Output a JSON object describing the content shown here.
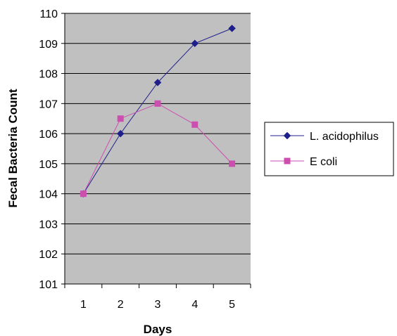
{
  "chart_data": {
    "type": "line",
    "title": "",
    "xlabel": "Days",
    "ylabel": "Fecal Bacteria Count",
    "categories": [
      "1",
      "2",
      "3",
      "4",
      "5"
    ],
    "ylim": [
      101,
      110
    ],
    "yticks": [
      "101",
      "102",
      "103",
      "104",
      "105",
      "106",
      "107",
      "108",
      "109",
      "110"
    ],
    "grid": true,
    "legend_position": "right",
    "plot_background": "#c0c0c0",
    "series": [
      {
        "name": "L. acidophilus",
        "values": [
          104,
          106,
          107.7,
          109,
          109.5
        ],
        "color": "#1f1f8c",
        "marker": "diamond"
      },
      {
        "name": "E coli",
        "values": [
          104,
          106.5,
          107,
          106.3,
          105
        ],
        "color": "#cc4fb0",
        "marker": "square"
      }
    ]
  }
}
